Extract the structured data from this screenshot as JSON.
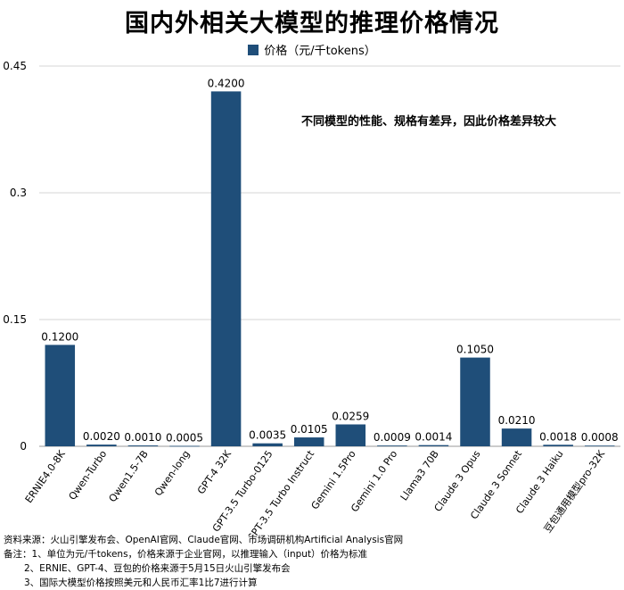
{
  "title": "国内外相关大模型的推理价格情况",
  "annotation": "不同模型的性能、规格有差异，因此价格差异较大",
  "notes": {
    "source": "资料来源：火山引擎发布会、OpenAI官网、Claude官网、市场调研机构Artificial Analysis官网",
    "note1": "备注：1、单位为元/千tokens，价格来源于企业官网，以推理输入（input）价格为标准",
    "note2": "2、ERNIE、GPT-4、豆包的价格来源于5月15日火山引擎发布会",
    "note3": "3、国际大模型价格按照美元和人民币汇率1比7进行计算"
  },
  "chart_data": {
    "type": "bar",
    "categories": [
      "ERNIE4.0-8K",
      "Qwen-Turbo",
      "Qwen1.5-7B",
      "Qwen-long",
      "GPT-4 32K",
      "GPT-3.5 Turbo-0125",
      "GPT-3.5 Turbo Instruct",
      "Gemini 1.5Pro",
      "Gemini 1.0 Pro",
      "Llama3 70B",
      "Claude 3 Opus",
      "Claude 3 Sonnet",
      "Claude 3 Haiku",
      "豆包通用模型pro-32K"
    ],
    "series": [
      {
        "name": "价格（元/千tokens）",
        "values": [
          0.12,
          0.002,
          0.001,
          0.0005,
          0.42,
          0.0035,
          0.0105,
          0.0259,
          0.0009,
          0.0014,
          0.105,
          0.021,
          0.0018,
          0.0008
        ],
        "value_labels": [
          "0.1200",
          "0.0020",
          "0.0010",
          "0.0005",
          "0.4200",
          "0.0035",
          "0.0105",
          "0.0259",
          "0.0009",
          "0.0014",
          "0.1050",
          "0.0210",
          "0.0018",
          "0.0008"
        ]
      }
    ],
    "yticks": [
      0,
      0.15,
      0.3,
      0.45
    ],
    "ytick_labels": [
      "0",
      "0.15",
      "0.3",
      "0.45"
    ],
    "ylim": [
      0,
      0.45
    ],
    "grid": true,
    "legend": "top-center",
    "bar_color": "#1f4e79"
  }
}
